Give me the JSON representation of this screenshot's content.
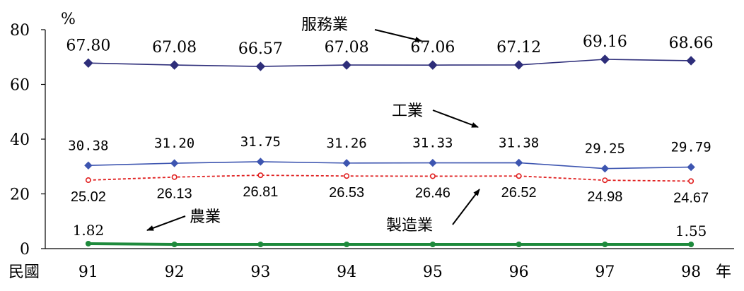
{
  "chart_data": {
    "type": "line",
    "unit": "%",
    "x_prefix": "民國",
    "x_suffix": "年",
    "categories": [
      "91",
      "92",
      "93",
      "94",
      "95",
      "96",
      "97",
      "98"
    ],
    "ylim": [
      0,
      80
    ],
    "yticks": [
      "0",
      "20",
      "40",
      "60",
      "80"
    ],
    "grid": false,
    "series": [
      {
        "key": "services",
        "name": "服務業",
        "color": "#2e2e7a",
        "marker": "diamond",
        "values": [
          67.8,
          67.08,
          66.57,
          67.08,
          67.06,
          67.12,
          69.16,
          68.66
        ],
        "labels": [
          "67.80",
          "67.08",
          "66.57",
          "67.08",
          "67.06",
          "67.12",
          "69.16",
          "68.66"
        ]
      },
      {
        "key": "industry",
        "name": "工業",
        "color": "#3d55b0",
        "marker": "diamond",
        "values": [
          30.38,
          31.2,
          31.75,
          31.26,
          31.33,
          31.38,
          29.25,
          29.79
        ],
        "labels": [
          "30.38",
          "31.20",
          "31.75",
          "31.26",
          "31.33",
          "31.38",
          "29.25",
          "29.79"
        ]
      },
      {
        "key": "manufacturing",
        "name": "製造業",
        "color": "#e02020",
        "marker": "circle-open",
        "line": "dotted",
        "values": [
          25.02,
          26.13,
          26.81,
          26.53,
          26.46,
          26.52,
          24.98,
          24.67
        ],
        "labels": [
          "25.02",
          "26.13",
          "26.81",
          "26.53",
          "26.46",
          "26.52",
          "24.98",
          "24.67"
        ]
      },
      {
        "key": "agriculture",
        "name": "農業",
        "color": "#1e8a3c",
        "marker": "circle",
        "values": [
          1.82,
          1.55,
          1.55,
          1.55,
          1.55,
          1.55,
          1.55,
          1.55
        ],
        "labels": [
          "1.82",
          "",
          "",
          "",
          "",
          "",
          "",
          "1.55"
        ]
      }
    ]
  }
}
